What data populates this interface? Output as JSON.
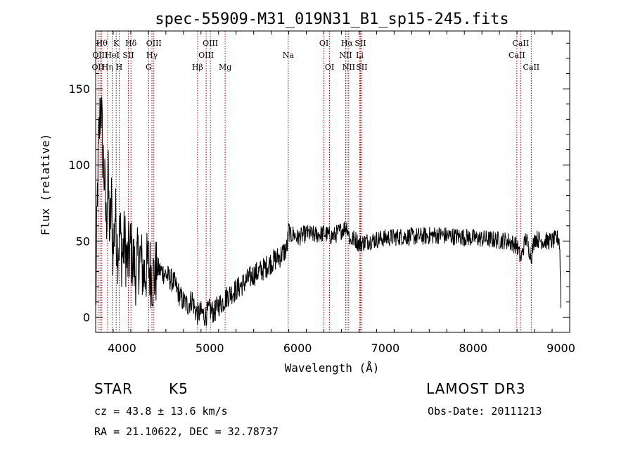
{
  "chart_data": {
    "type": "line",
    "title": "spec-55909-M31_019N31_B1_sp15-245.fits",
    "xlabel": "Wavelength (Å)",
    "ylabel": "Flux (relative)",
    "xlim": [
      3700,
      9100
    ],
    "ylim": [
      -10,
      188
    ],
    "x_ticks": [
      4000,
      5000,
      6000,
      7000,
      8000,
      9000
    ],
    "y_ticks": [
      0,
      50,
      100,
      150
    ],
    "grid": false,
    "series": [
      {
        "x": [
          3700,
          3720,
          3740,
          3760,
          3780,
          3800,
          3820,
          3840,
          3860,
          3880,
          3900,
          3920,
          3950,
          3980,
          4000,
          4030,
          4060,
          4100,
          4150,
          4200,
          4250,
          4300,
          4350,
          4400,
          4450,
          4500,
          4550,
          4600,
          4650,
          4700,
          4750,
          4800,
          4830,
          4860,
          4900,
          4950,
          5000,
          5050,
          5100,
          5150,
          5200,
          5300,
          5400,
          5500,
          5600,
          5700,
          5800,
          5880,
          5890,
          5900,
          5920,
          5950,
          6000,
          6100,
          6200,
          6300,
          6400,
          6500,
          6563,
          6600,
          6650,
          6700,
          6800,
          6900,
          7000,
          7200,
          7400,
          7600,
          7800,
          8000,
          8200,
          8400,
          8500,
          8542,
          8600,
          8662,
          8700,
          8800,
          8900,
          8980,
          8990,
          9000
        ],
        "y": [
          2,
          80,
          120,
          145,
          110,
          90,
          60,
          95,
          55,
          75,
          40,
          70,
          45,
          55,
          40,
          50,
          35,
          45,
          30,
          40,
          28,
          35,
          25,
          32,
          30,
          28,
          25,
          22,
          15,
          10,
          8,
          12,
          5,
          2,
          3,
          1,
          5,
          3,
          8,
          10,
          14,
          18,
          23,
          28,
          31,
          36,
          40,
          45,
          52,
          58,
          53,
          55,
          52,
          55,
          54,
          55,
          53,
          57,
          60,
          50,
          52,
          48,
          50,
          51,
          52,
          53,
          53,
          54,
          53,
          52,
          51,
          50,
          47,
          38,
          52,
          40,
          52,
          50,
          50,
          52,
          40,
          8
        ],
        "noise": 6
      }
    ],
    "line_markers": [
      {
        "x": 3727,
        "label": "OII",
        "row": 3
      },
      {
        "x": 3750,
        "label": "OIII",
        "row": 2
      },
      {
        "x": 3770,
        "label": "Hθ",
        "row": 1
      },
      {
        "x": 3835,
        "label": "Hη",
        "row": 3
      },
      {
        "x": 3889,
        "label": "HeI",
        "row": 2
      },
      {
        "x": 3934,
        "label": "K",
        "row": 1
      },
      {
        "x": 3968,
        "label": "H",
        "row": 3
      },
      {
        "x": 4072,
        "label": "SII",
        "row": 2
      },
      {
        "x": 4102,
        "label": "Hδ",
        "row": 1
      },
      {
        "x": 4304,
        "label": "G",
        "row": 3
      },
      {
        "x": 4341,
        "label": "Hγ",
        "row": 2
      },
      {
        "x": 4363,
        "label": "OIII",
        "row": 1
      },
      {
        "x": 4861,
        "label": "Hβ",
        "row": 3
      },
      {
        "x": 4959,
        "label": "OIII",
        "row": 2
      },
      {
        "x": 5007,
        "label": "OIII",
        "row": 1
      },
      {
        "x": 5175,
        "label": "Mg",
        "row": 3
      },
      {
        "x": 5894,
        "label": "Na",
        "row": 2
      },
      {
        "x": 6300,
        "label": "OI",
        "row": 1
      },
      {
        "x": 6364,
        "label": "OI",
        "row": 3
      },
      {
        "x": 6548,
        "label": "NII",
        "row": 2
      },
      {
        "x": 6563,
        "label": "Hα",
        "row": 1
      },
      {
        "x": 6583,
        "label": "NII",
        "row": 3
      },
      {
        "x": 6708,
        "label": "Li",
        "row": 2
      },
      {
        "x": 6716,
        "label": "SII",
        "row": 1
      },
      {
        "x": 6731,
        "label": "SII",
        "row": 3
      },
      {
        "x": 8498,
        "label": "CaII",
        "row": 2
      },
      {
        "x": 8542,
        "label": "CaII",
        "row": 1
      },
      {
        "x": 8662,
        "label": "CaII",
        "row": 3
      }
    ],
    "colors": {
      "spectrum": "#000000",
      "marker": "#a00000",
      "axes": "#000000"
    }
  },
  "info": {
    "object_class": "STAR",
    "subclass": "K5",
    "survey": "LAMOST DR3",
    "cz": "cz = 43.8 ± 13.6 km/s",
    "obs_date": "Obs-Date: 20111213",
    "coords": "RA =  21.10622, DEC =  32.78737"
  }
}
